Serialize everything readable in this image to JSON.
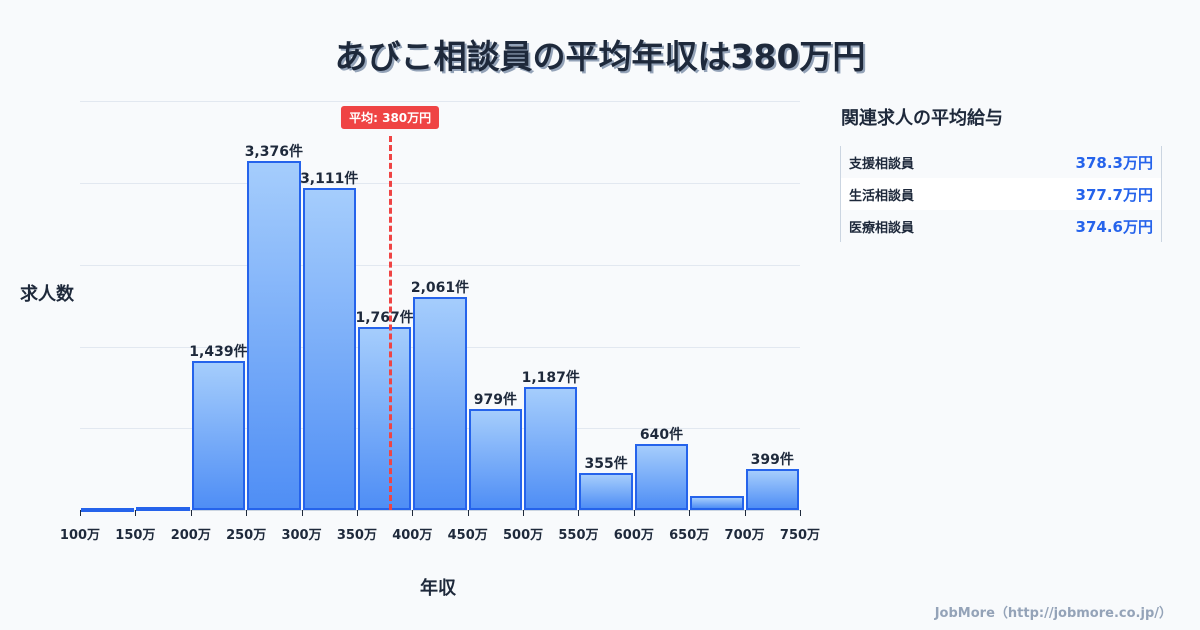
{
  "title": "あびこ相談員の平均年収は380万円",
  "chart_data": {
    "type": "bar",
    "title": "あびこ相談員の平均年収は380万円",
    "xlabel": "年収",
    "ylabel": "求人数",
    "tick_labels": [
      "100万",
      "150万",
      "200万",
      "250万",
      "300万",
      "350万",
      "400万",
      "450万",
      "500万",
      "550万",
      "600万",
      "650万",
      "700万",
      "750万"
    ],
    "categories": [
      "100-150万",
      "150-200万",
      "200-250万",
      "250-300万",
      "300-350万",
      "350-400万",
      "400-450万",
      "450-500万",
      "500-550万",
      "550-600万",
      "600-650万",
      "650-700万",
      "700-750万"
    ],
    "values": [
      10,
      30,
      1439,
      3376,
      3111,
      1767,
      2061,
      979,
      1187,
      355,
      640,
      135,
      399
    ],
    "value_labels": [
      "",
      "",
      "1,439件",
      "3,376件",
      "3,111件",
      "1,767件",
      "2,061件",
      "979件",
      "1,187件",
      "355件",
      "640件",
      "",
      "399件"
    ],
    "ylim": [
      0,
      3960
    ],
    "grid": true,
    "average_line": {
      "value": 380,
      "label": "平均: 380万円",
      "color": "#ef4444"
    },
    "bar_color": "#2563eb"
  },
  "side_panel": {
    "title": "関連求人の平均給与",
    "rows": [
      {
        "name": "支援相談員",
        "value": "378.3万円"
      },
      {
        "name": "生活相談員",
        "value": "377.7万円"
      },
      {
        "name": "医療相談員",
        "value": "374.6万円"
      }
    ]
  },
  "footer": "JobMore（http://jobmore.co.jp/）"
}
